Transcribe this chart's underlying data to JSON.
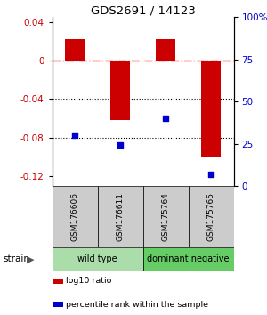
{
  "title": "GDS2691 / 14123",
  "samples": [
    "GSM176606",
    "GSM176611",
    "GSM175764",
    "GSM175765"
  ],
  "log10_ratio": [
    0.022,
    -0.062,
    0.022,
    -0.1
  ],
  "percentile_rank": [
    30,
    24,
    40,
    7
  ],
  "bar_color": "#cc0000",
  "dot_color": "#0000cc",
  "ylim_left": [
    -0.13,
    0.045
  ],
  "ylim_right": [
    0,
    100
  ],
  "yticks_left": [
    0.04,
    0.0,
    -0.04,
    -0.08,
    -0.12
  ],
  "yticks_right": [
    100,
    75,
    50,
    25,
    0
  ],
  "groups": [
    {
      "label": "wild type",
      "samples": [
        0,
        1
      ],
      "color": "#aaddaa"
    },
    {
      "label": "dominant negative",
      "samples": [
        2,
        3
      ],
      "color": "#66cc66"
    }
  ],
  "strain_label": "strain",
  "legend_items": [
    {
      "color": "#cc0000",
      "label": "log10 ratio"
    },
    {
      "color": "#0000cc",
      "label": "percentile rank within the sample"
    }
  ],
  "hline_y": 0.0,
  "dotted_lines": [
    -0.04,
    -0.08
  ],
  "bar_width": 0.45,
  "background_color": "#ffffff"
}
